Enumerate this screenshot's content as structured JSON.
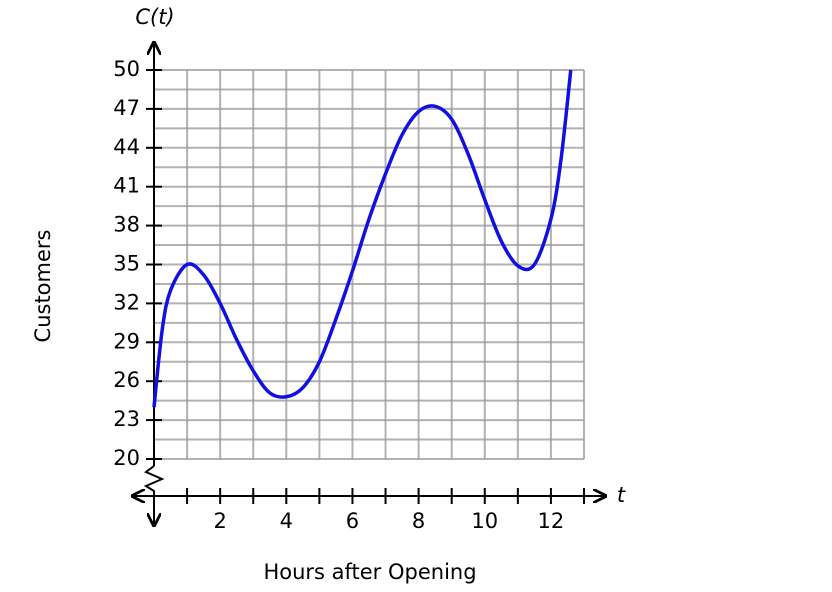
{
  "chart_data": {
    "type": "line",
    "title": "C(t)",
    "x_label": "t",
    "y_title": "Customers",
    "x_title": "Hours after Opening",
    "x": [
      0,
      0.25,
      0.5,
      1,
      1.5,
      2,
      2.5,
      3,
      3.5,
      4,
      4.5,
      5,
      5.5,
      6,
      6.5,
      7,
      7.5,
      8,
      8.5,
      9,
      9.5,
      10,
      10.5,
      11,
      11.5,
      12,
      12.3,
      12.6
    ],
    "series": [
      {
        "name": "C(t)",
        "color": "#1010e0",
        "values": [
          24,
          30,
          33,
          35,
          34.2,
          32,
          29.2,
          26.8,
          25.1,
          24.8,
          25.5,
          27.5,
          30.8,
          34.5,
          38.5,
          42,
          45,
          46.8,
          47.2,
          46.2,
          43.5,
          40,
          36.8,
          34.9,
          35,
          38.5,
          43,
          50
        ]
      }
    ],
    "xlim": [
      0,
      13
    ],
    "ylim": [
      20,
      50
    ],
    "xticks": [
      2,
      4,
      6,
      8,
      10,
      12
    ],
    "x_minor_ticks": [
      1,
      3,
      5,
      7,
      9,
      11,
      13
    ],
    "yticks": [
      20,
      23,
      26,
      29,
      32,
      35,
      38,
      41,
      44,
      47,
      50
    ],
    "y_minor_ticks": [
      21.5,
      24.5,
      27.5,
      30.5,
      33.5,
      36.5,
      39.5,
      42.5,
      45.5,
      48.5
    ],
    "grid": true
  }
}
